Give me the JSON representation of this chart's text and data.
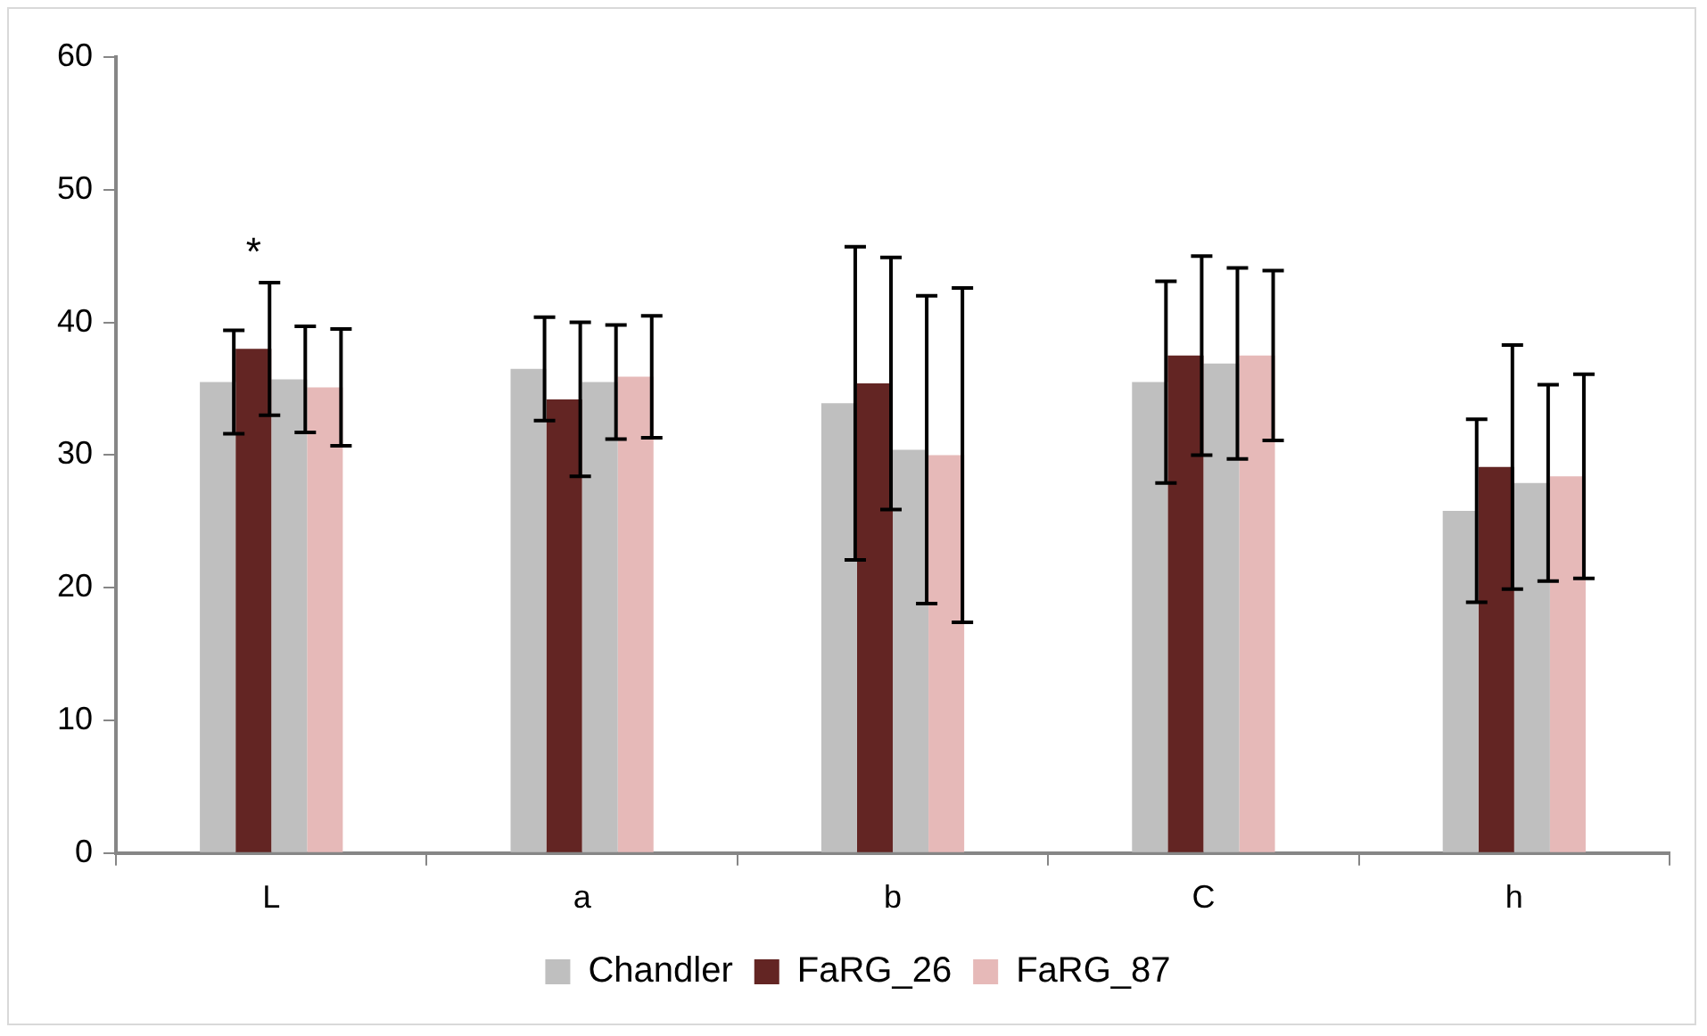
{
  "chart_data": {
    "type": "bar",
    "categories": [
      "L",
      "a",
      "b",
      "C",
      "h"
    ],
    "series": [
      {
        "name": "Chandler",
        "color": "#bfbfbf",
        "values": [
          35.5,
          36.5,
          33.9,
          35.5,
          25.8
        ],
        "errors": [
          3.9,
          3.9,
          11.8,
          7.6,
          6.9
        ]
      },
      {
        "name": "FaRG_26",
        "color": "#632523",
        "values": [
          38.0,
          34.2,
          35.4,
          37.5,
          29.1
        ],
        "errors": [
          5.0,
          5.8,
          9.5,
          7.5,
          9.2
        ]
      },
      {
        "color": "#bfbfbf",
        "values": [
          35.7,
          35.5,
          30.4,
          36.9,
          27.9
        ],
        "errors": [
          4.0,
          4.3,
          11.6,
          7.2,
          7.4
        ]
      },
      {
        "name": "FaRG_87",
        "color": "#e6b9b8",
        "values": [
          35.1,
          35.9,
          30.0,
          37.5,
          28.4
        ],
        "errors": [
          4.4,
          4.6,
          12.6,
          6.4,
          7.7
        ]
      }
    ],
    "ylim": [
      0,
      60
    ],
    "yticks": [
      0,
      10,
      20,
      30,
      40,
      50,
      60
    ],
    "grid": false,
    "legend": "bottom",
    "annotations": [
      "*"
    ]
  }
}
